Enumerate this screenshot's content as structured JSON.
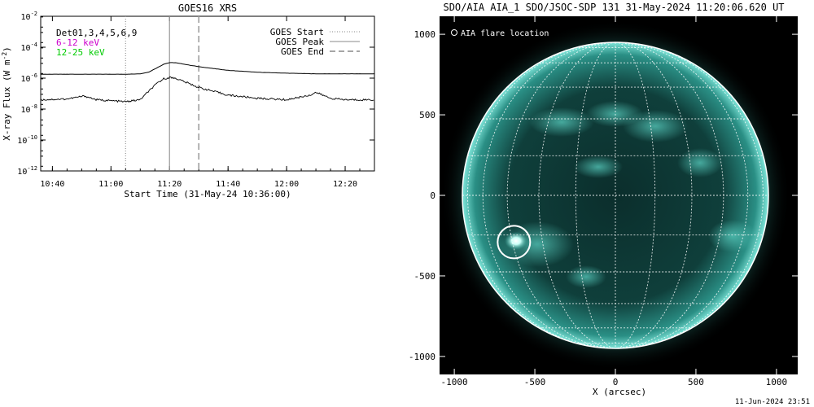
{
  "goes_panel": {
    "title": "GOES16 XRS",
    "xlabel": "Start Time (31-May-24 10:36:00)",
    "ylabel": "X-ray Flux (W m",
    "ylabel_exp": "-2",
    "ylabel_close": ")",
    "legend_left": [
      {
        "text": "Det01,3,4,5,6,9",
        "color": "#000000"
      },
      {
        "text": "6-12 keV",
        "color": "#cc00cc"
      },
      {
        "text": "12-25 keV",
        "color": "#00cc00"
      }
    ],
    "legend_right": {
      "start": "GOES Start",
      "peak": "GOES Peak",
      "end": "GOES End"
    }
  },
  "aia_panel": {
    "title": "SDO/AIA AIA_1 SDO/JSOC-SDP 131 31-May-2024 11:20:06.620 UT",
    "legend": "AIA flare location",
    "xlabel": "X (arcsec)",
    "colors": {
      "disk": "#5ad6c8",
      "limb": "#bff5ee",
      "circle": "#ffffff",
      "bg": "#000000"
    }
  },
  "footer": {
    "timestamp": "11-Jun-2024 23:51"
  },
  "chart_data": [
    {
      "type": "line",
      "title": "GOES16 XRS",
      "xlabel": "Start Time (31-May-24 10:36:00)",
      "ylabel": "X-ray Flux (W m^-2)",
      "yscale": "log",
      "ylim": [
        1e-12,
        0.01
      ],
      "xlim": [
        "10:36",
        "12:30"
      ],
      "x_ticks": [
        "10:40",
        "11:00",
        "11:20",
        "11:40",
        "12:00",
        "12:20"
      ],
      "y_ticks": [
        "10^-2",
        "10^-4",
        "10^-6",
        "10^-8",
        "10^-10",
        "10^-12"
      ],
      "series": [
        {
          "name": "",
          "x": [
            "10:36",
            "10:50",
            "11:05",
            "11:10",
            "11:13",
            "11:16",
            "11:18",
            "11:20",
            "11:22",
            "11:25",
            "11:30",
            "11:40",
            "11:50",
            "12:00",
            "12:10",
            "12:20",
            "12:30"
          ],
          "values": [
            1.8e-06,
            1.8e-06,
            1.8e-06,
            1.9e-06,
            2.5e-06,
            5e-06,
            8e-06,
            1e-05,
            1e-05,
            8e-06,
            5.5e-06,
            3.2e-06,
            2.4e-06,
            2.1e-06,
            1.9e-06,
            1.9e-06,
            1.9e-06
          ]
        },
        {
          "name": "",
          "x": [
            "10:36",
            "10:45",
            "10:51",
            "10:55",
            "11:05",
            "11:10",
            "11:13",
            "11:16",
            "11:18",
            "11:20",
            "11:22",
            "11:25",
            "11:30",
            "11:40",
            "11:50",
            "12:00",
            "12:08",
            "12:10",
            "12:15",
            "12:20",
            "12:30"
          ],
          "values": [
            4e-08,
            4.5e-08,
            7e-08,
            4e-08,
            3e-08,
            4e-08,
            1.5e-07,
            5e-07,
            9e-07,
            1.1e-06,
            1e-06,
            6e-07,
            2.5e-07,
            8e-08,
            5e-08,
            4e-08,
            8e-08,
            1.2e-07,
            5e-08,
            4e-08,
            4e-08
          ]
        }
      ],
      "vertical_markers": [
        {
          "label": "GOES Start",
          "x": "11:05",
          "style": "dotted"
        },
        {
          "label": "GOES Peak",
          "x": "11:20",
          "style": "solid"
        },
        {
          "label": "GOES End",
          "x": "11:30",
          "style": "dashed"
        }
      ],
      "grid": false,
      "legend_placement": "top"
    },
    {
      "type": "scatter",
      "title": "SDO/AIA AIA_1 SDO/JSOC-SDP 131 31-May-2024 11:20:06.620 UT",
      "xlabel": "X (arcsec)",
      "ylabel": "",
      "xlim": [
        -1100,
        1100
      ],
      "ylim": [
        -1100,
        1100
      ],
      "x_ticks": [
        -1000,
        -500,
        0,
        500,
        1000
      ],
      "y_ticks": [
        1000,
        500,
        0,
        -500,
        -1000
      ],
      "solar_radius_arcsec": 950,
      "points": [
        {
          "name": "AIA flare location",
          "x": -630,
          "y": -290
        }
      ],
      "grid": "heliographic 15 deg",
      "legend_placement": "top-left"
    }
  ]
}
